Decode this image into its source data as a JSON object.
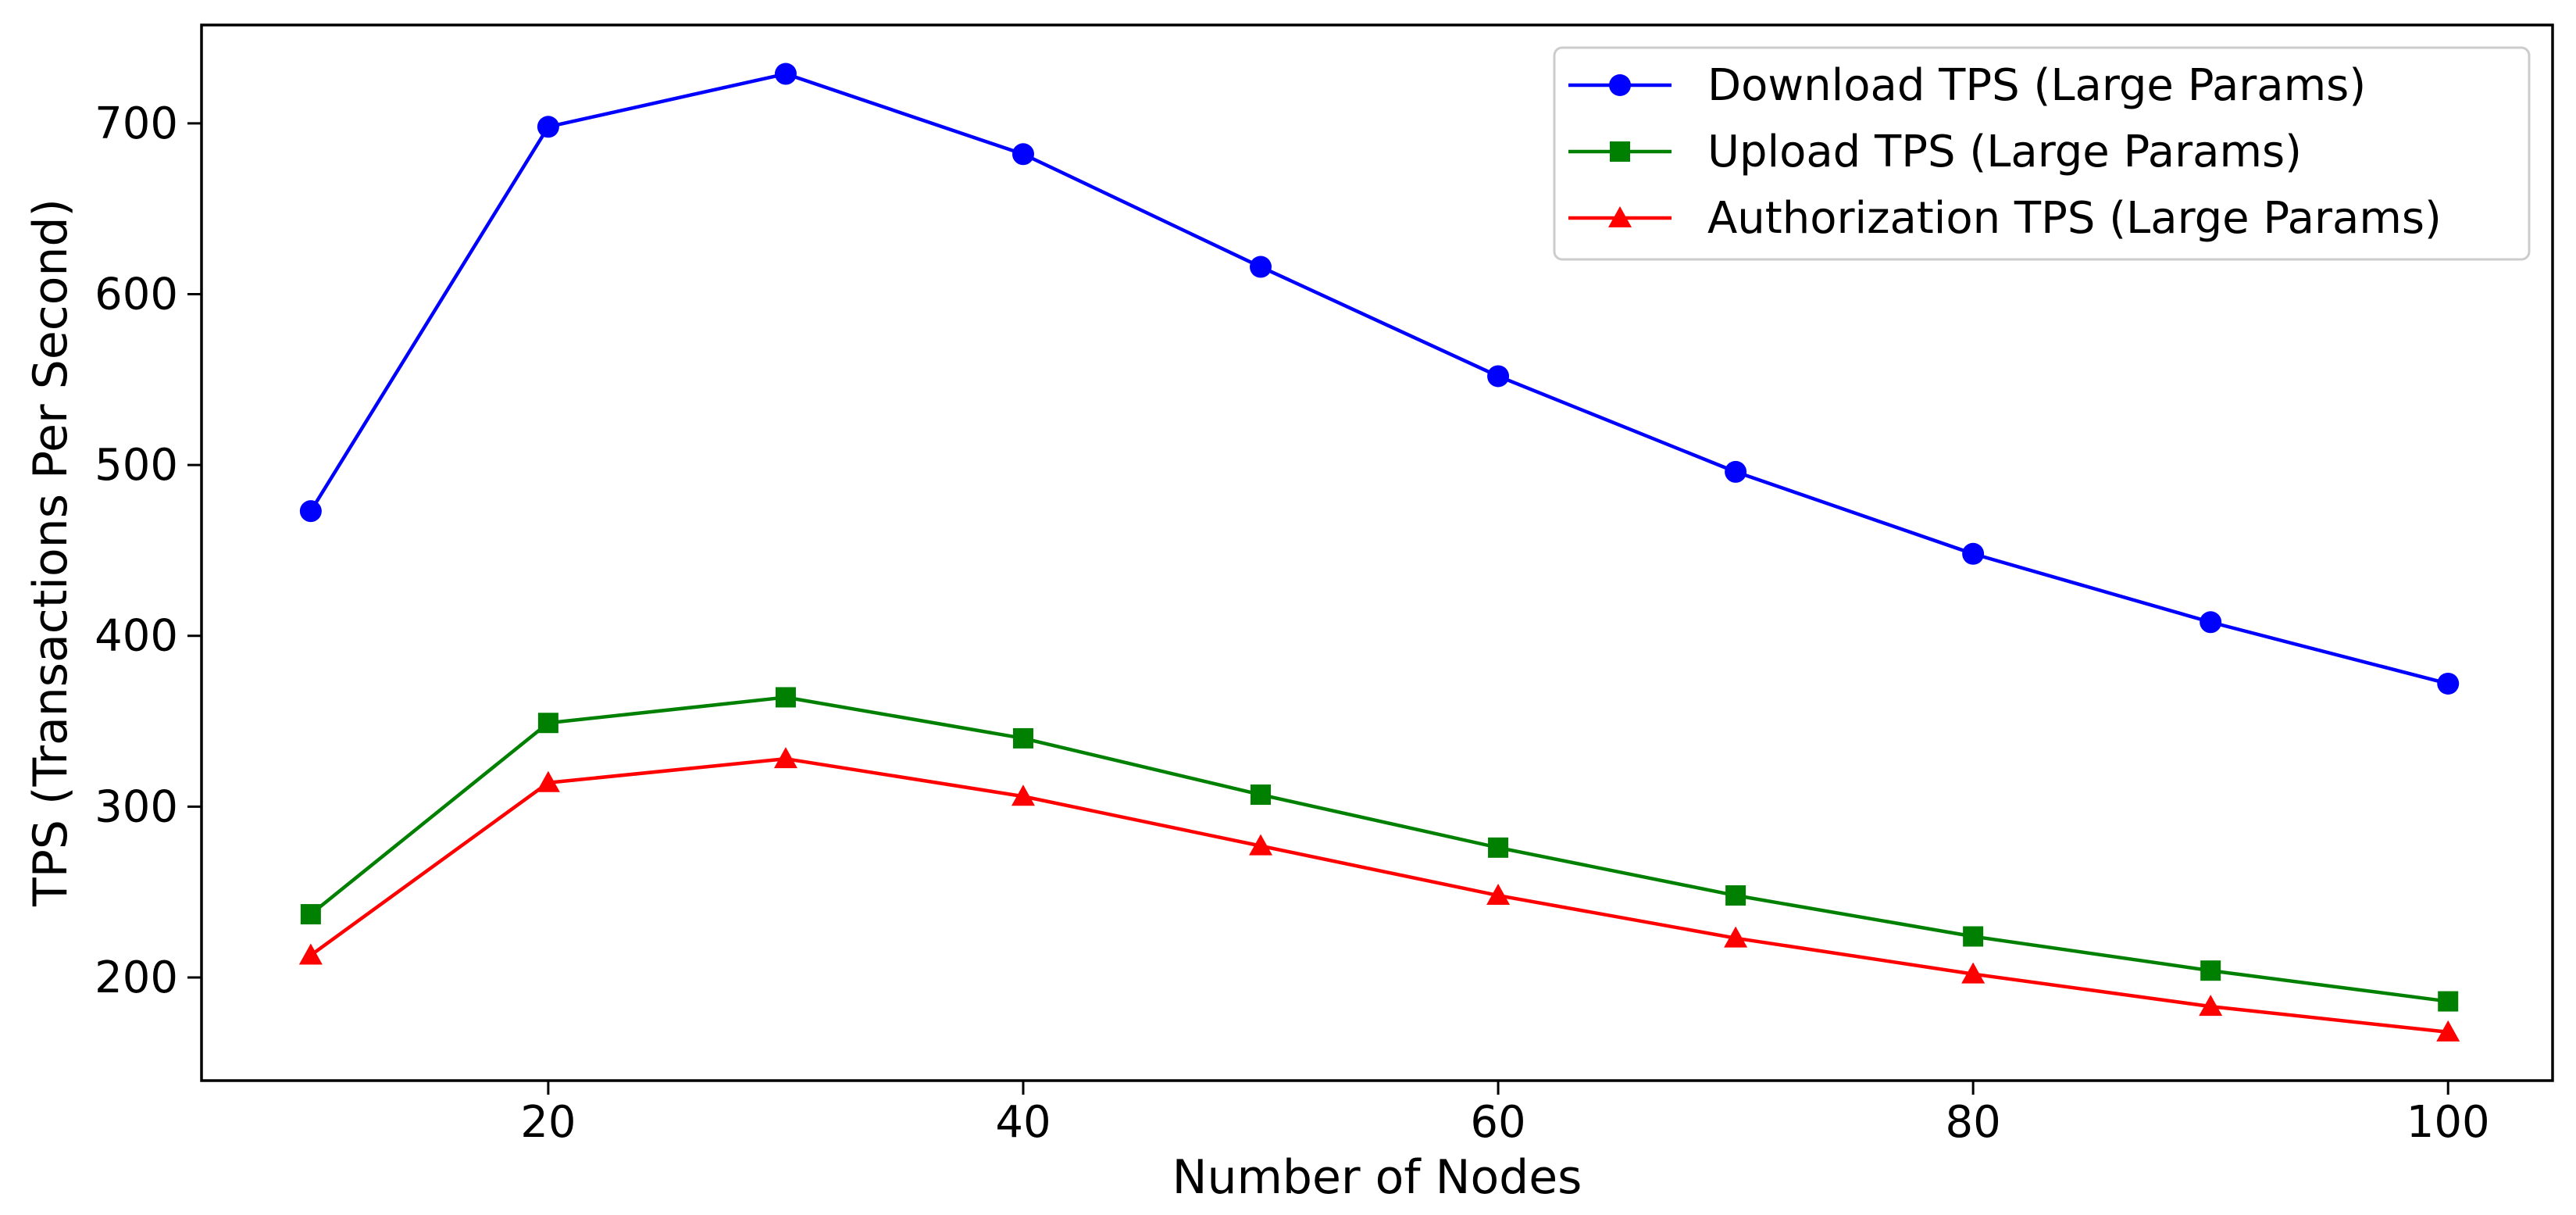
{
  "chart_data": {
    "type": "line",
    "title": "",
    "xlabel": "Number of Nodes",
    "ylabel": "TPS (Transactions Per Second)",
    "x": [
      10,
      20,
      30,
      40,
      50,
      60,
      70,
      80,
      90,
      100
    ],
    "series": [
      {
        "name": "Download TPS (Large Params)",
        "color": "#0000ff",
        "marker": "circle",
        "values": [
          473,
          698,
          729,
          682,
          616,
          552,
          496,
          448,
          408,
          372
        ]
      },
      {
        "name": "Upload TPS (Large Params)",
        "color": "#008000",
        "marker": "square",
        "values": [
          237,
          349,
          364,
          340,
          307,
          276,
          248,
          224,
          204,
          186
        ]
      },
      {
        "name": "Authorization TPS (Large Params)",
        "color": "#ff0000",
        "marker": "triangle",
        "values": [
          213,
          314,
          328,
          306,
          277,
          248,
          223,
          202,
          183,
          168
        ]
      }
    ],
    "xticks": [
      20,
      40,
      60,
      80,
      100
    ],
    "yticks": [
      200,
      300,
      400,
      500,
      600,
      700
    ],
    "xlim": [
      5.4,
      104.4
    ],
    "ylim": [
      139.6,
      757.6
    ],
    "grid": false,
    "legend_position": "upper right",
    "axis_color": "#000000",
    "legend_border_color": "#cccccc",
    "background": "#ffffff"
  }
}
